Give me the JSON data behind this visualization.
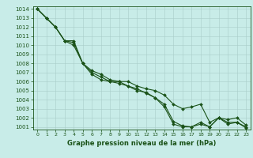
{
  "title": "Graphe pression niveau de la mer (hPa)",
  "background_color": "#c8ece8",
  "grid_color": "#a8ccc8",
  "line_color": "#1a5218",
  "x": [
    0,
    1,
    2,
    3,
    4,
    5,
    6,
    7,
    8,
    9,
    10,
    11,
    12,
    13,
    14,
    15,
    16,
    17,
    18,
    19,
    20,
    21,
    22,
    23
  ],
  "s1": [
    1014,
    1013,
    1012,
    1010.5,
    1010.3,
    1008,
    1007,
    1006.5,
    1006,
    1006,
    1005.5,
    1005,
    1004.8,
    1004.2,
    1003.5,
    1001.6,
    1001.1,
    1001,
    1001.5,
    1001,
    1002,
    1001.5,
    1001.5,
    1001
  ],
  "s2": [
    1014,
    1013,
    1012,
    1010.5,
    1010.5,
    1008,
    1007.2,
    1006.8,
    1006.2,
    1006,
    1006,
    1005.5,
    1005.2,
    1005,
    1004.5,
    1003.5,
    1003,
    1003.2,
    1003.5,
    1001.5,
    1002,
    1001.8,
    1002,
    1001.2
  ],
  "s3": [
    1014,
    1013,
    1012,
    1010.5,
    1010.0,
    1008,
    1006.8,
    1006.2,
    1006,
    1005.8,
    1005.5,
    1005.2,
    1004.7,
    1004.2,
    1003.2,
    1001.3,
    1001,
    1001,
    1001.3,
    1001,
    1002,
    1001.3,
    1001.5,
    1000.9
  ],
  "ylim_min": 1001,
  "ylim_max": 1014,
  "yticks": [
    1001,
    1002,
    1003,
    1004,
    1005,
    1006,
    1007,
    1008,
    1009,
    1010,
    1011,
    1012,
    1013,
    1014
  ],
  "markersize": 2.0,
  "linewidth": 0.8,
  "tick_fontsize": 5,
  "xlabel_fontsize": 6
}
